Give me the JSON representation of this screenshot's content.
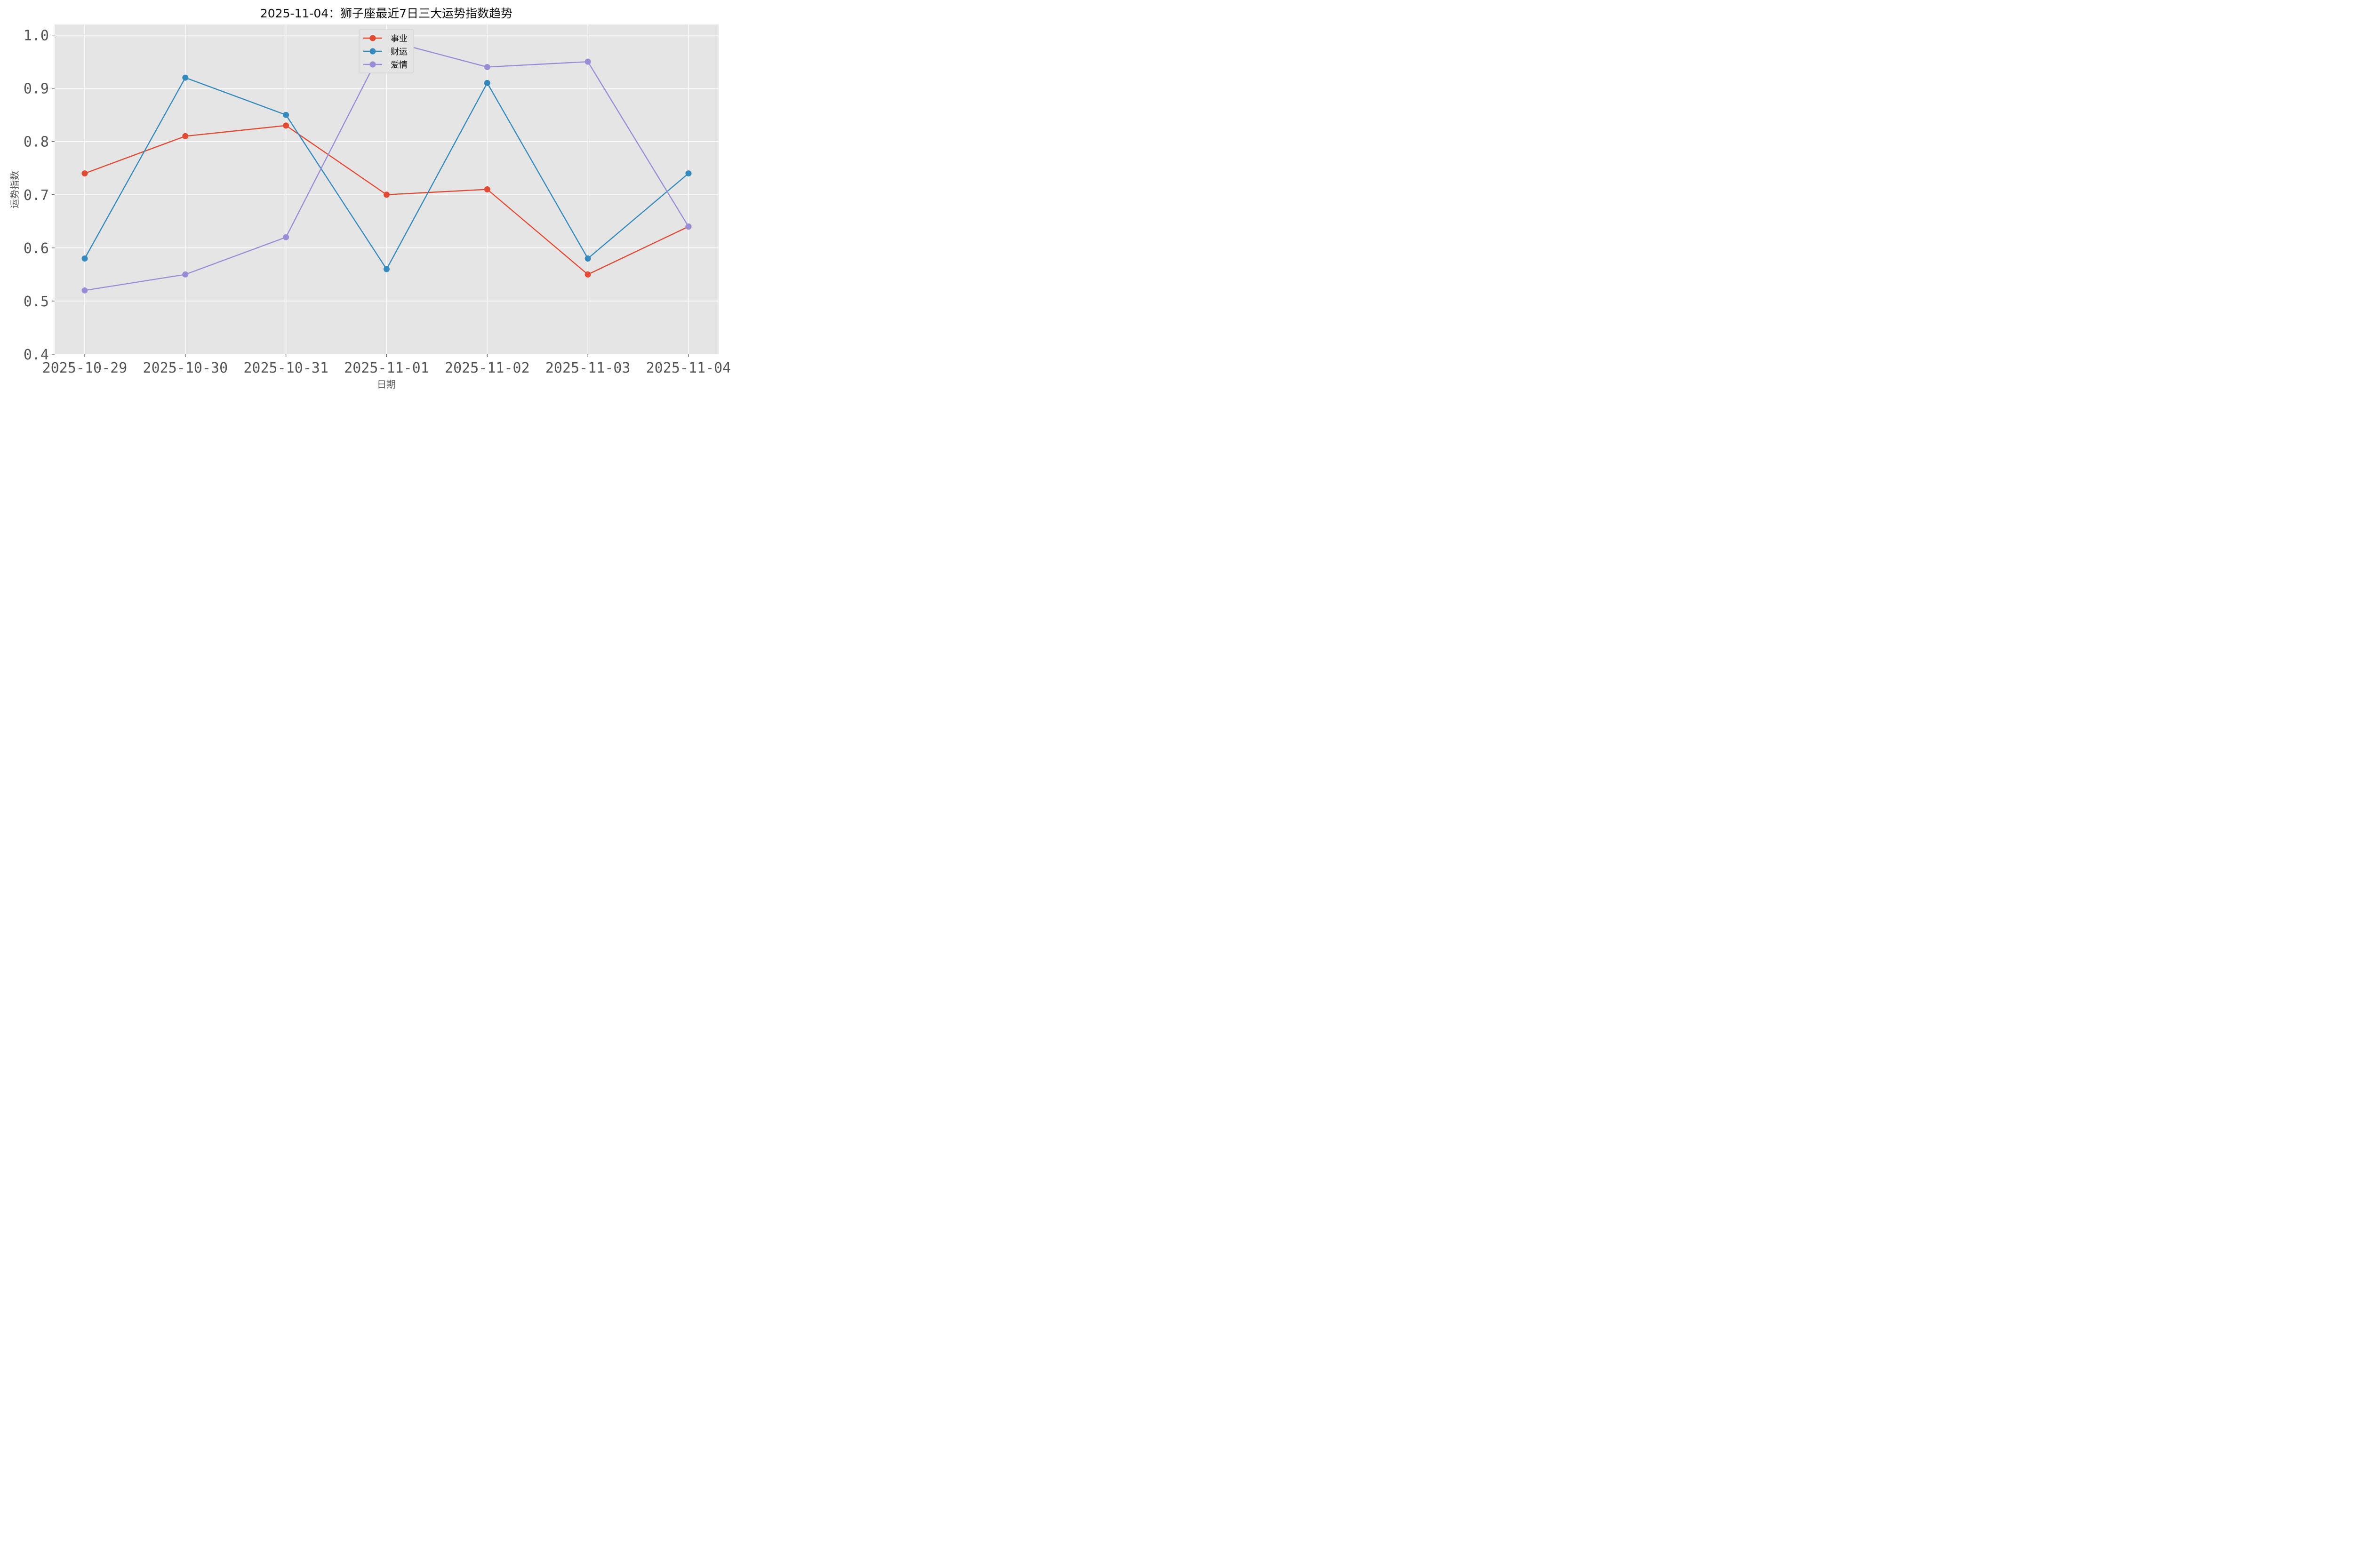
{
  "chart_data": {
    "type": "line",
    "title": "2025-11-04：狮子座最近7日三大运势指数趋势",
    "xlabel": "日期",
    "ylabel": "运势指数",
    "categories": [
      "2025-10-29",
      "2025-10-30",
      "2025-10-31",
      "2025-11-01",
      "2025-11-02",
      "2025-11-03",
      "2025-11-04"
    ],
    "ylim": [
      0.4,
      1.02
    ],
    "yticks": [
      "0.4",
      "0.5",
      "0.6",
      "0.7",
      "0.8",
      "0.9",
      "1.0"
    ],
    "grid": true,
    "legend_position": "top-center",
    "series": [
      {
        "name": "事业",
        "color": "#E24A33",
        "values": [
          0.74,
          0.81,
          0.83,
          0.7,
          0.71,
          0.55,
          0.64
        ]
      },
      {
        "name": "财运",
        "color": "#348ABD",
        "values": [
          0.58,
          0.92,
          0.85,
          0.56,
          0.91,
          0.58,
          0.74
        ]
      },
      {
        "name": "爱情",
        "color": "#988ED5",
        "values": [
          0.52,
          0.55,
          0.62,
          0.99,
          0.94,
          0.95,
          0.64
        ]
      }
    ]
  }
}
